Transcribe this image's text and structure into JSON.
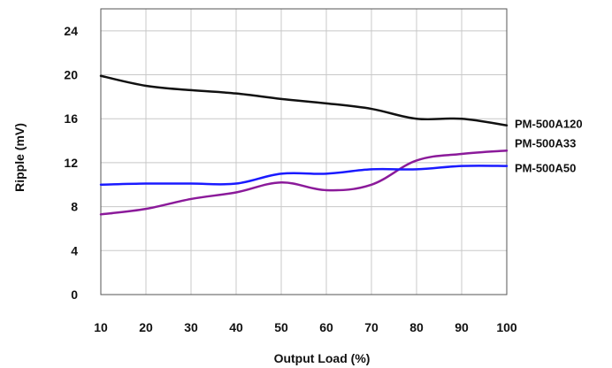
{
  "chart_data": {
    "type": "line",
    "xlabel": "Output Load (%)",
    "ylabel": "Ripple (mV)",
    "x": [
      10,
      20,
      30,
      40,
      50,
      60,
      70,
      80,
      90,
      100
    ],
    "xlim": [
      10,
      100
    ],
    "ylim": [
      0,
      26
    ],
    "xticks": [
      10,
      20,
      30,
      40,
      50,
      60,
      70,
      80,
      90,
      100
    ],
    "yticks": [
      0,
      4,
      8,
      12,
      16,
      20,
      24
    ],
    "grid": true,
    "series": [
      {
        "name": "PM-500A120",
        "color": "#111111",
        "values": [
          19.9,
          19.0,
          18.6,
          18.3,
          17.8,
          17.4,
          16.9,
          16.0,
          16.0,
          15.4
        ]
      },
      {
        "name": "PM-500A33",
        "color": "#8b1a9a",
        "values": [
          7.3,
          7.8,
          8.7,
          9.3,
          10.2,
          9.5,
          10.0,
          12.2,
          12.8,
          13.1
        ]
      },
      {
        "name": "PM-500A50",
        "color": "#1a1aff",
        "values": [
          10.0,
          10.1,
          10.1,
          10.1,
          11.0,
          11.0,
          11.4,
          11.4,
          11.7,
          11.7
        ]
      }
    ]
  }
}
